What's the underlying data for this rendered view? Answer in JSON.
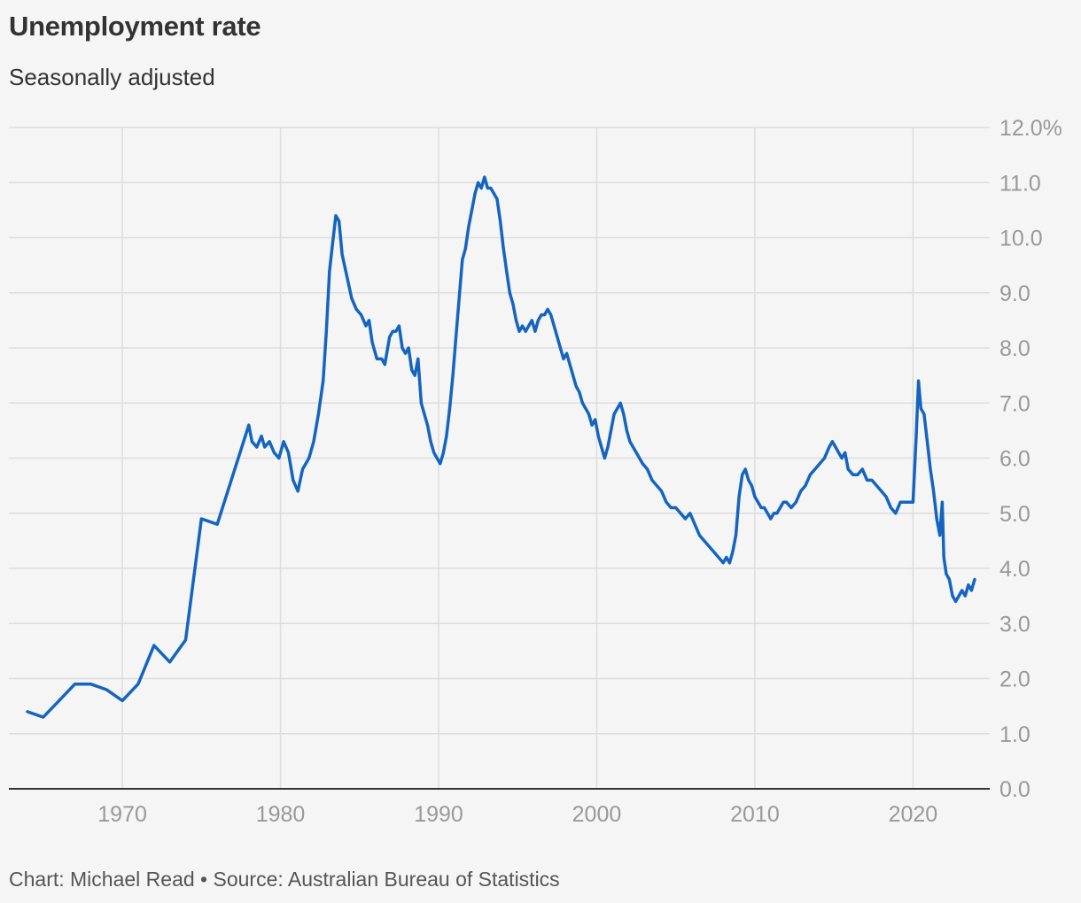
{
  "header": {
    "title": "Unemployment rate",
    "subtitle": "Seasonally adjusted"
  },
  "footer": {
    "credit": "Chart: Michael Read • Source: Australian Bureau of Statistics"
  },
  "colors": {
    "line": "#1565c0",
    "grid": "#dddddd",
    "axis": "#333333",
    "tick_text": "#999999",
    "background": "#f5f5f5"
  },
  "chart_data": {
    "type": "line",
    "title": "Unemployment rate",
    "subtitle": "Seasonally adjusted",
    "xlabel": "",
    "ylabel": "",
    "xlim": [
      1963,
      2025
    ],
    "ylim": [
      0,
      12
    ],
    "x_ticks": [
      1970,
      1980,
      1990,
      2000,
      2010,
      2020
    ],
    "y_ticks": [
      {
        "value": 0,
        "label": "0.0"
      },
      {
        "value": 1,
        "label": "1.0"
      },
      {
        "value": 2,
        "label": "2.0"
      },
      {
        "value": 3,
        "label": "3.0"
      },
      {
        "value": 4,
        "label": "4.0"
      },
      {
        "value": 5,
        "label": "5.0"
      },
      {
        "value": 6,
        "label": "6.0"
      },
      {
        "value": 7,
        "label": "7.0"
      },
      {
        "value": 8,
        "label": "8.0"
      },
      {
        "value": 9,
        "label": "9.0"
      },
      {
        "value": 10,
        "label": "10.0"
      },
      {
        "value": 11,
        "label": "11.0"
      },
      {
        "value": 12,
        "label": "12.0%"
      }
    ],
    "grid": true,
    "series": [
      {
        "x": [
          1964,
          1965,
          1966,
          1967,
          1968,
          1969,
          1970,
          1971,
          1972,
          1973,
          1974,
          1975,
          1976,
          1977,
          1978,
          1978.2,
          1978.5,
          1978.8,
          1979.0,
          1979.3,
          1979.6,
          1979.9,
          1980.2,
          1980.5,
          1980.8,
          1981.1,
          1981.4,
          1981.6,
          1981.8,
          1982.1,
          1982.4,
          1982.7,
          1982.9,
          1983.1,
          1983.3,
          1983.5,
          1983.7,
          1983.9,
          1984.2,
          1984.5,
          1984.8,
          1985.1,
          1985.4,
          1985.6,
          1985.8,
          1986.1,
          1986.4,
          1986.6,
          1986.9,
          1987.1,
          1987.3,
          1987.5,
          1987.7,
          1987.9,
          1988.1,
          1988.3,
          1988.5,
          1988.7,
          1988.9,
          1989.1,
          1989.3,
          1989.5,
          1989.7,
          1989.9,
          1990.1,
          1990.3,
          1990.5,
          1990.7,
          1990.9,
          1991.1,
          1991.3,
          1991.5,
          1991.7,
          1991.9,
          1992.1,
          1992.3,
          1992.5,
          1992.7,
          1992.9,
          1993.1,
          1993.3,
          1993.5,
          1993.7,
          1993.9,
          1994.1,
          1994.3,
          1994.5,
          1994.7,
          1994.9,
          1995.1,
          1995.3,
          1995.5,
          1995.7,
          1995.9,
          1996.1,
          1996.3,
          1996.5,
          1996.7,
          1996.9,
          1997.1,
          1997.3,
          1997.5,
          1997.7,
          1997.9,
          1998.1,
          1998.3,
          1998.5,
          1998.7,
          1998.9,
          1999.1,
          1999.3,
          1999.5,
          1999.7,
          1999.9,
          2000.1,
          2000.3,
          2000.5,
          2000.7,
          2000.9,
          2001.1,
          2001.3,
          2001.5,
          2001.7,
          2001.9,
          2002.1,
          2002.3,
          2002.5,
          2002.7,
          2002.9,
          2003.2,
          2003.5,
          2003.8,
          2004.1,
          2004.4,
          2004.7,
          2005.0,
          2005.3,
          2005.6,
          2005.9,
          2006.2,
          2006.5,
          2006.8,
          2007.1,
          2007.4,
          2007.7,
          2008.0,
          2008.2,
          2008.4,
          2008.6,
          2008.8,
          2009.0,
          2009.2,
          2009.4,
          2009.6,
          2009.8,
          2010.0,
          2010.2,
          2010.4,
          2010.6,
          2010.8,
          2011.0,
          2011.2,
          2011.4,
          2011.6,
          2011.8,
          2012.0,
          2012.3,
          2012.6,
          2012.9,
          2013.2,
          2013.5,
          2013.8,
          2014.1,
          2014.4,
          2014.7,
          2014.9,
          2015.1,
          2015.3,
          2015.5,
          2015.7,
          2015.9,
          2016.2,
          2016.5,
          2016.8,
          2017.1,
          2017.4,
          2017.7,
          2018.0,
          2018.3,
          2018.6,
          2018.9,
          2019.2,
          2019.5,
          2019.8,
          2020.0,
          2020.2,
          2020.35,
          2020.5,
          2020.7,
          2020.9,
          2021.1,
          2021.3,
          2021.5,
          2021.7,
          2021.85,
          2021.95,
          2022.1,
          2022.3,
          2022.5,
          2022.7,
          2022.9,
          2023.1,
          2023.3,
          2023.5,
          2023.7,
          2023.9
        ],
        "y": [
          1.4,
          1.3,
          1.6,
          1.9,
          1.9,
          1.8,
          1.6,
          1.9,
          2.6,
          2.3,
          2.7,
          4.9,
          4.8,
          5.7,
          6.6,
          6.3,
          6.2,
          6.4,
          6.2,
          6.3,
          6.1,
          6.0,
          6.3,
          6.1,
          5.6,
          5.4,
          5.8,
          5.9,
          6.0,
          6.3,
          6.8,
          7.4,
          8.3,
          9.4,
          9.9,
          10.4,
          10.3,
          9.7,
          9.3,
          8.9,
          8.7,
          8.6,
          8.4,
          8.5,
          8.1,
          7.8,
          7.8,
          7.7,
          8.2,
          8.3,
          8.3,
          8.4,
          8.0,
          7.9,
          8.0,
          7.6,
          7.5,
          7.8,
          7.0,
          6.8,
          6.6,
          6.3,
          6.1,
          6.0,
          5.9,
          6.1,
          6.4,
          6.9,
          7.5,
          8.2,
          8.9,
          9.6,
          9.8,
          10.2,
          10.5,
          10.8,
          11.0,
          10.9,
          11.1,
          10.9,
          10.9,
          10.8,
          10.7,
          10.3,
          9.8,
          9.4,
          9.0,
          8.8,
          8.5,
          8.3,
          8.4,
          8.3,
          8.4,
          8.5,
          8.3,
          8.5,
          8.6,
          8.6,
          8.7,
          8.6,
          8.4,
          8.2,
          8.0,
          7.8,
          7.9,
          7.7,
          7.5,
          7.3,
          7.2,
          7.0,
          6.9,
          6.8,
          6.6,
          6.7,
          6.4,
          6.2,
          6.0,
          6.2,
          6.5,
          6.8,
          6.9,
          7.0,
          6.8,
          6.5,
          6.3,
          6.2,
          6.1,
          6.0,
          5.9,
          5.8,
          5.6,
          5.5,
          5.4,
          5.2,
          5.1,
          5.1,
          5.0,
          4.9,
          5.0,
          4.8,
          4.6,
          4.5,
          4.4,
          4.3,
          4.2,
          4.1,
          4.2,
          4.1,
          4.3,
          4.6,
          5.3,
          5.7,
          5.8,
          5.6,
          5.5,
          5.3,
          5.2,
          5.1,
          5.1,
          5.0,
          4.9,
          5.0,
          5.0,
          5.1,
          5.2,
          5.2,
          5.1,
          5.2,
          5.4,
          5.5,
          5.7,
          5.8,
          5.9,
          6.0,
          6.2,
          6.3,
          6.2,
          6.1,
          6.0,
          6.1,
          5.8,
          5.7,
          5.7,
          5.8,
          5.6,
          5.6,
          5.5,
          5.4,
          5.3,
          5.1,
          5.0,
          5.2,
          5.2,
          5.2,
          5.2,
          6.4,
          7.4,
          6.9,
          6.8,
          6.3,
          5.8,
          5.4,
          4.9,
          4.6,
          5.2,
          4.2,
          3.9,
          3.8,
          3.5,
          3.4,
          3.5,
          3.6,
          3.5,
          3.7,
          3.6,
          3.8
        ]
      }
    ]
  }
}
